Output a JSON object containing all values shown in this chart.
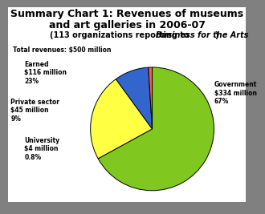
{
  "title1": "Summary Chart 1: Revenues of museums",
  "title2": "and art galleries in 2006-07",
  "sub_plain": "(113 organizations reporting to ",
  "sub_italic": "Business for the Arts",
  "sub_end": ")",
  "total_text": "Total revenues: $500 million",
  "slices": [
    {
      "label": "Government\n$334 million\n67%",
      "value": 67.0,
      "color": "#80C820"
    },
    {
      "label": "Earned\n$116 million\n23%",
      "value": 23.0,
      "color": "#FFFF44"
    },
    {
      "label": "Private sector\n$45 million\n9%",
      "value": 9.0,
      "color": "#3366CC"
    },
    {
      "label": "University\n$4 million\n0.8%",
      "value": 1.0,
      "color": "#FF5555"
    }
  ],
  "bg_outer": "#808080",
  "bg_inner": "#FFFFFF",
  "title_fontsize": 9.0,
  "sub_fontsize": 7.0,
  "label_fontsize": 5.5,
  "total_fontsize": 5.5
}
